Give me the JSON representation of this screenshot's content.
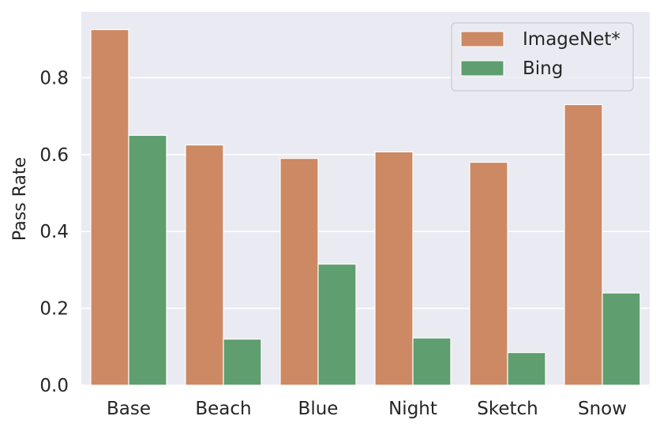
{
  "chart_data": {
    "type": "bar",
    "title": "",
    "xlabel": "",
    "ylabel": "Pass Rate",
    "categories": [
      "Base",
      "Beach",
      "Blue",
      "Night",
      "Sketch",
      "Snow"
    ],
    "series": [
      {
        "name": "ImageNet*",
        "color": "#cc8963",
        "values": [
          0.925,
          0.625,
          0.59,
          0.607,
          0.58,
          0.73
        ]
      },
      {
        "name": "Bing",
        "color": "#5f9e6e",
        "values": [
          0.65,
          0.12,
          0.315,
          0.123,
          0.085,
          0.24
        ]
      }
    ],
    "yticks": [
      "0.0",
      "0.2",
      "0.4",
      "0.6",
      "0.8"
    ],
    "ylim": [
      0,
      0.97
    ],
    "grid": true,
    "legend_position": "top-right",
    "background": "#eaeaf2"
  }
}
